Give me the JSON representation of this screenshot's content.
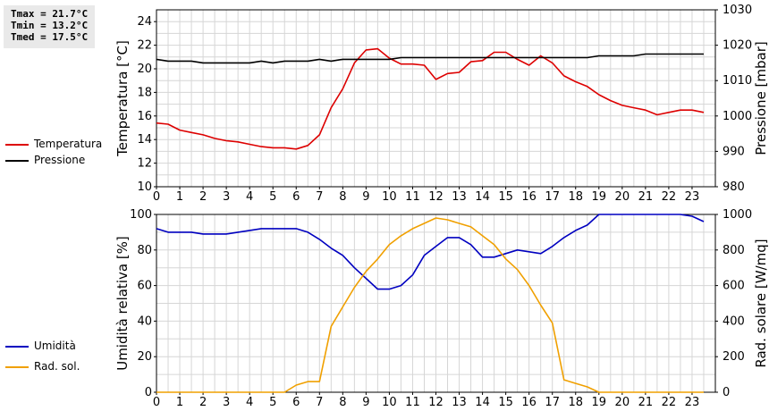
{
  "stats": {
    "tmax": "Tmax = 21.7°C",
    "tmin": "Tmin = 13.2°C",
    "tmed": "Tmed = 17.5°C"
  },
  "legend_top": [
    {
      "label": "Temperatura",
      "color": "#dd0000"
    },
    {
      "label": "Pressione",
      "color": "#000000"
    }
  ],
  "legend_bottom": [
    {
      "label": "Umidità",
      "color": "#0000c0"
    },
    {
      "label": "Rad. sol.",
      "color": "#f0a000"
    }
  ],
  "chart_data": [
    {
      "type": "line",
      "xlim": [
        0,
        24
      ],
      "xticks": [
        0,
        1,
        2,
        3,
        4,
        5,
        6,
        7,
        8,
        9,
        10,
        11,
        12,
        13,
        14,
        15,
        16,
        17,
        18,
        19,
        20,
        21,
        22,
        23
      ],
      "ylabel": "Temperatura [°C]",
      "ylim": [
        10,
        25
      ],
      "yticks": [
        10,
        12,
        14,
        16,
        18,
        20,
        22,
        24
      ],
      "y2label": "Pressione [mbar]",
      "y2lim": [
        980,
        1030
      ],
      "y2ticks": [
        980,
        990,
        1000,
        1010,
        1020,
        1030
      ],
      "grid": true,
      "series": [
        {
          "name": "Temperatura",
          "color": "#dd0000",
          "axis": "left",
          "x": [
            0,
            0.5,
            1,
            1.5,
            2,
            2.5,
            3,
            3.5,
            4,
            4.5,
            5,
            5.5,
            6,
            6.5,
            7,
            7.5,
            8,
            8.5,
            9,
            9.5,
            10,
            10.5,
            11,
            11.5,
            12,
            12.5,
            13,
            13.5,
            14,
            14.5,
            15,
            15.5,
            16,
            16.5,
            17,
            17.5,
            18,
            18.5,
            19,
            19.5,
            20,
            20.5,
            21,
            21.5,
            22,
            22.5,
            23,
            23.5
          ],
          "y": [
            15.4,
            15.3,
            14.8,
            14.6,
            14.4,
            14.1,
            13.9,
            13.8,
            13.6,
            13.4,
            13.3,
            13.3,
            13.2,
            13.5,
            14.4,
            16.7,
            18.3,
            20.5,
            21.6,
            21.7,
            20.9,
            20.4,
            20.4,
            20.3,
            19.1,
            19.6,
            19.7,
            20.6,
            20.7,
            21.4,
            21.4,
            20.8,
            20.3,
            21.1,
            20.5,
            19.4,
            18.9,
            18.5,
            17.8,
            17.3,
            16.9,
            16.7,
            16.5,
            16.1,
            16.3,
            16.5,
            16.5,
            16.3
          ]
        },
        {
          "name": "Pressione",
          "color": "#000000",
          "axis": "right",
          "x": [
            0,
            0.5,
            1,
            1.5,
            2,
            2.5,
            3,
            3.5,
            4,
            4.5,
            5,
            5.5,
            6,
            6.5,
            7,
            7.5,
            8,
            8.5,
            9,
            9.5,
            10,
            10.5,
            11,
            11.5,
            12,
            12.5,
            13,
            13.5,
            14,
            14.5,
            15,
            15.5,
            16,
            16.5,
            17,
            17.5,
            18,
            18.5,
            19,
            19.5,
            20,
            20.5,
            21,
            21.5,
            22,
            22.5,
            23,
            23.5
          ],
          "y": [
            1016,
            1015.5,
            1015.5,
            1015.5,
            1015,
            1015,
            1015,
            1015,
            1015,
            1015.5,
            1015,
            1015.5,
            1015.5,
            1015.5,
            1016,
            1015.5,
            1016,
            1016,
            1016,
            1016,
            1016,
            1016.5,
            1016.5,
            1016.5,
            1016.5,
            1016.5,
            1016.5,
            1016.5,
            1016.5,
            1016.5,
            1016.5,
            1016.5,
            1016.5,
            1016.5,
            1016.5,
            1016.5,
            1016.5,
            1016.5,
            1017,
            1017,
            1017,
            1017,
            1017.5,
            1017.5,
            1017.5,
            1017.5,
            1017.5,
            1017.5
          ]
        }
      ]
    },
    {
      "type": "line",
      "xlim": [
        0,
        24
      ],
      "xticks": [
        0,
        1,
        2,
        3,
        4,
        5,
        6,
        7,
        8,
        9,
        10,
        11,
        12,
        13,
        14,
        15,
        16,
        17,
        18,
        19,
        20,
        21,
        22,
        23
      ],
      "ylabel": "Umidità relativa [%]",
      "ylim": [
        0,
        100
      ],
      "yticks": [
        0,
        20,
        40,
        60,
        80,
        100
      ],
      "y2label": "Rad. solare [W/mq]",
      "y2lim": [
        0,
        1000
      ],
      "y2ticks": [
        0,
        200,
        400,
        600,
        800,
        1000
      ],
      "grid": true,
      "series": [
        {
          "name": "Umidità",
          "color": "#0000c0",
          "axis": "left",
          "x": [
            0,
            0.5,
            1,
            1.5,
            2,
            2.5,
            3,
            3.5,
            4,
            4.5,
            5,
            5.5,
            6,
            6.5,
            7,
            7.5,
            8,
            8.5,
            9,
            9.5,
            10,
            10.5,
            11,
            11.5,
            12,
            12.5,
            13,
            13.5,
            14,
            14.5,
            15,
            15.5,
            16,
            16.5,
            17,
            17.5,
            18,
            18.5,
            19,
            19.5,
            20,
            20.5,
            21,
            21.5,
            22,
            22.5,
            23,
            23.5
          ],
          "y": [
            92,
            90,
            90,
            90,
            89,
            89,
            89,
            90,
            91,
            92,
            92,
            92,
            92,
            90,
            86,
            81,
            77,
            70,
            64,
            58,
            58,
            60,
            66,
            77,
            82,
            87,
            87,
            83,
            76,
            76,
            78,
            80,
            79,
            78,
            82,
            87,
            91,
            94,
            100,
            100,
            100,
            100,
            100,
            100,
            100,
            100,
            99,
            96
          ]
        },
        {
          "name": "Rad. sol.",
          "color": "#f0a000",
          "axis": "right",
          "x": [
            0,
            0.5,
            1,
            1.5,
            2,
            2.5,
            3,
            3.5,
            4,
            4.5,
            5,
            5.5,
            6,
            6.5,
            7,
            7.5,
            8,
            8.5,
            9,
            9.5,
            10,
            10.5,
            11,
            11.5,
            12,
            12.5,
            13,
            13.5,
            14,
            14.5,
            15,
            15.5,
            16,
            16.5,
            17,
            17.5,
            18,
            18.5,
            19,
            19.5,
            20,
            20.5,
            21,
            21.5,
            22,
            22.5,
            23,
            23.5
          ],
          "y": [
            0,
            0,
            0,
            0,
            0,
            0,
            0,
            0,
            0,
            0,
            0,
            0,
            40,
            60,
            60,
            370,
            480,
            590,
            680,
            750,
            830,
            880,
            920,
            950,
            980,
            970,
            950,
            930,
            880,
            830,
            750,
            690,
            600,
            490,
            390,
            70,
            50,
            30,
            0,
            0,
            0,
            0,
            0,
            0,
            0,
            0,
            0,
            0
          ]
        }
      ]
    }
  ]
}
